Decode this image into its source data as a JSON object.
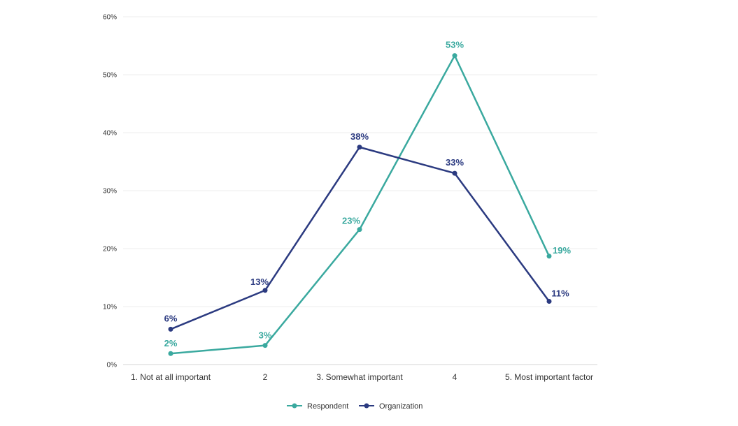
{
  "chart_data": {
    "type": "line",
    "categories": [
      "1. Not at all important",
      "2",
      "3. Somewhat important",
      "4",
      "5. Most important factor"
    ],
    "series": [
      {
        "name": "Respondent",
        "color": "#3aa99f",
        "values": [
          1.9,
          3.3,
          23.3,
          53.3,
          18.7
        ],
        "labels": [
          "2%",
          "3%",
          "23%",
          "53%",
          "19%"
        ]
      },
      {
        "name": "Organization",
        "color": "#2b3a80",
        "values": [
          6.1,
          12.8,
          37.5,
          33.0,
          10.9
        ],
        "labels": [
          "6%",
          "13%",
          "38%",
          "33%",
          "11%"
        ]
      }
    ],
    "y_ticks": [
      0,
      10,
      20,
      30,
      40,
      50,
      60
    ],
    "y_tick_labels": [
      "0%",
      "10%",
      "20%",
      "30%",
      "40%",
      "50%",
      "60%"
    ],
    "ylim": [
      0,
      60
    ],
    "grid": true,
    "legend_position": "bottom-center",
    "title": "",
    "xlabel": "",
    "ylabel": ""
  }
}
